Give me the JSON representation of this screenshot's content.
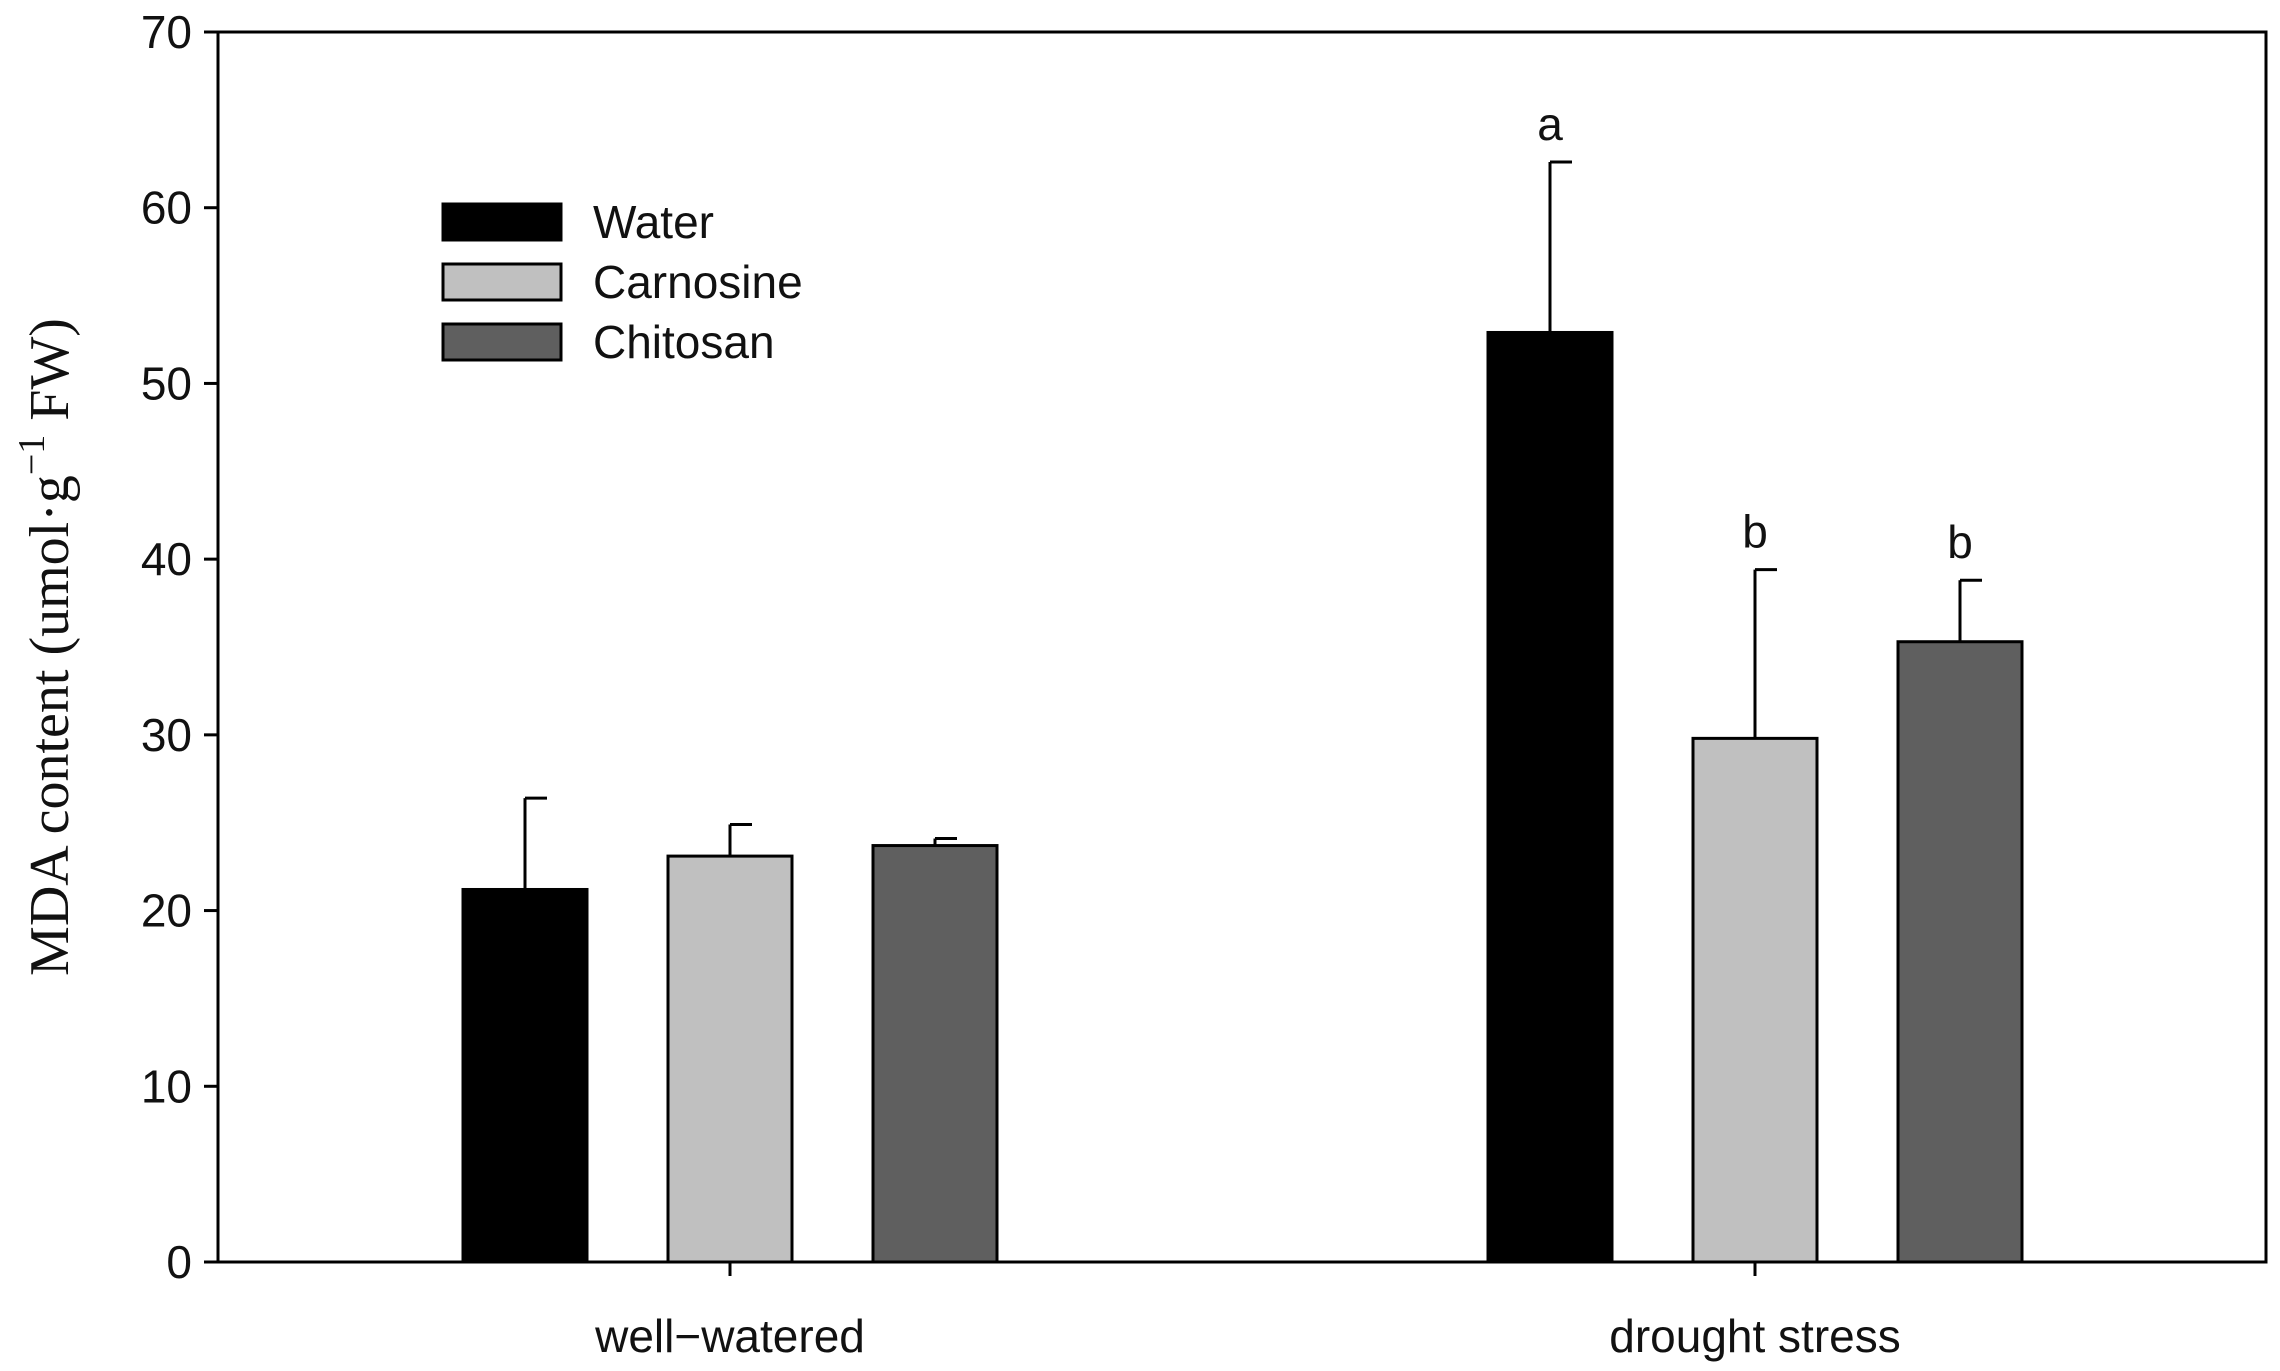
{
  "chart_data": {
    "type": "bar",
    "categories": [
      "well−watered",
      "drought stress"
    ],
    "series": [
      {
        "name": "Water",
        "color": "#000000",
        "values": [
          21.2,
          52.9
        ],
        "errors": [
          5.2,
          9.7
        ],
        "sig": [
          "",
          "a"
        ]
      },
      {
        "name": "Carnosine",
        "color": "#c0c0c0",
        "values": [
          23.1,
          29.8
        ],
        "errors": [
          1.8,
          9.6
        ],
        "sig": [
          "",
          "b"
        ]
      },
      {
        "name": "Chitosan",
        "color": "#5f5f5f",
        "values": [
          23.7,
          35.3
        ],
        "errors": [
          0.4,
          3.5
        ],
        "sig": [
          "",
          "b"
        ]
      }
    ],
    "ylim": [
      0,
      70
    ],
    "yticks": [
      0,
      10,
      20,
      30,
      40,
      50,
      60,
      70
    ],
    "ylabel_main": "MDA content (umol·g",
    "ylabel_sup": "−1",
    "ylabel_end": " FW)",
    "xlabel": "",
    "legend_position": "top-left"
  }
}
